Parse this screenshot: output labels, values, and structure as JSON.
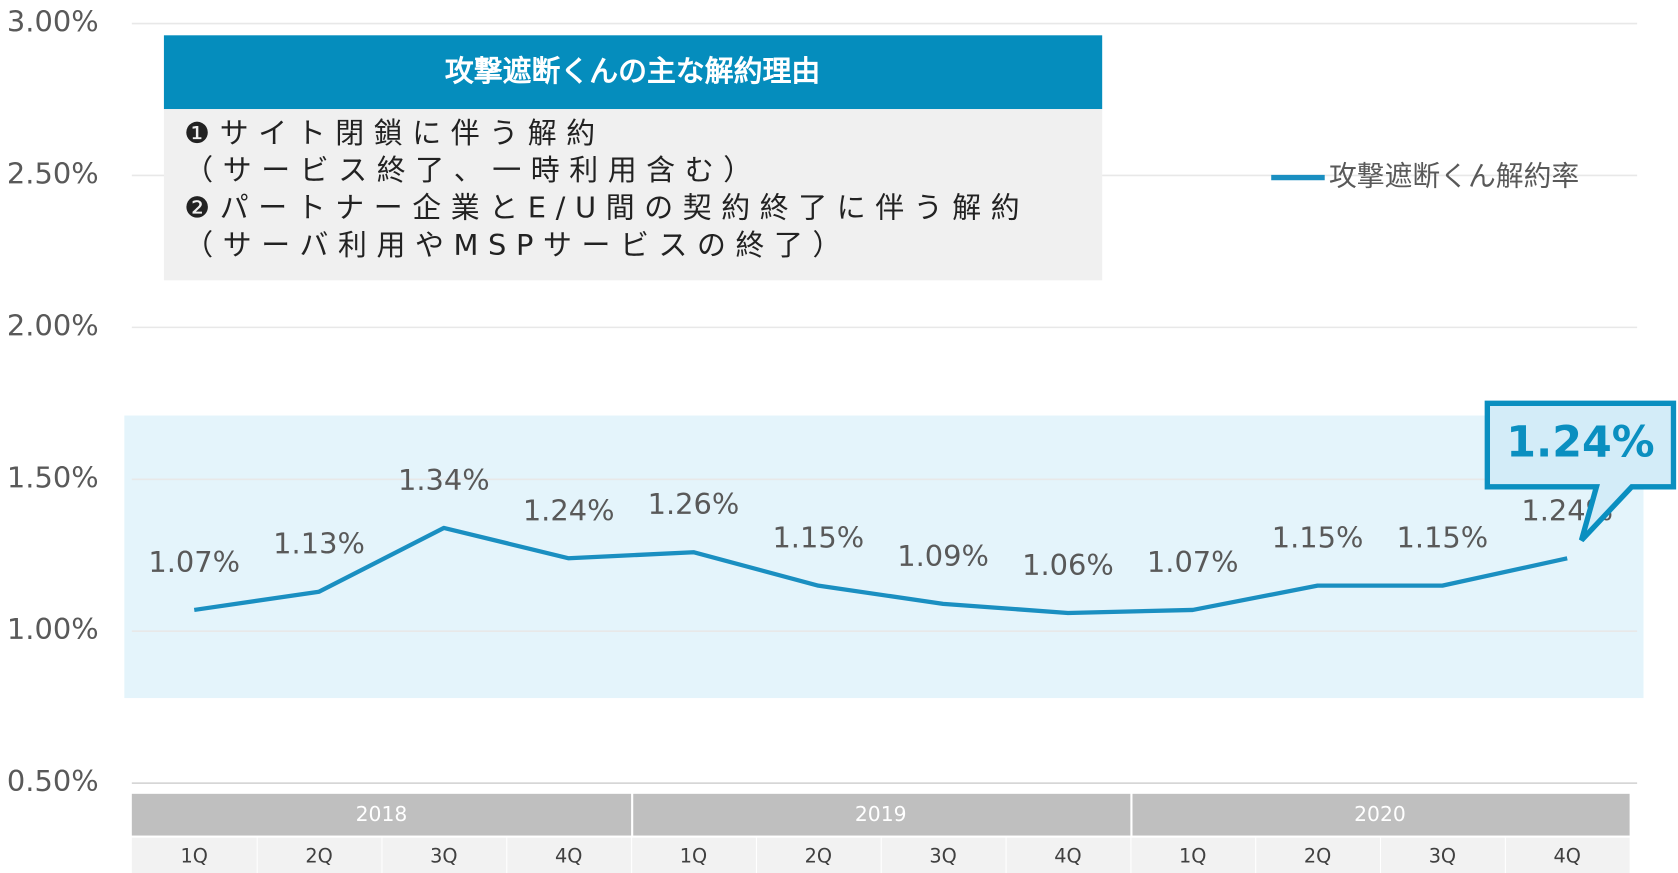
{
  "chart_data": {
    "type": "line",
    "categories": [
      "1Q",
      "2Q",
      "3Q",
      "4Q",
      "1Q",
      "2Q",
      "3Q",
      "4Q",
      "1Q",
      "2Q",
      "3Q",
      "4Q"
    ],
    "groups": [
      "2018",
      "2019",
      "2020"
    ],
    "series": [
      {
        "name": "攻撃遮断くん解約率",
        "color": "#1a8fc1",
        "values": [
          1.07,
          1.13,
          1.34,
          1.24,
          1.26,
          1.15,
          1.09,
          1.06,
          1.07,
          1.15,
          1.15,
          1.24
        ],
        "value_labels": [
          "1.07%",
          "1.13%",
          "1.34%",
          "1.24%",
          "1.26%",
          "1.15%",
          "1.09%",
          "1.06%",
          "1.07%",
          "1.15%",
          "1.15%",
          "1.24%"
        ]
      }
    ],
    "ylim": [
      0.5,
      3.0
    ],
    "yticks": [
      {
        "value": 0.5,
        "label": "0.50%"
      },
      {
        "value": 1.0,
        "label": "1.00%"
      },
      {
        "value": 1.5,
        "label": "1.50%"
      },
      {
        "value": 2.0,
        "label": "2.00%"
      },
      {
        "value": 2.5,
        "label": "2.50%"
      },
      {
        "value": 3.0,
        "label": "3.00%"
      }
    ],
    "grid": true,
    "legend": "right",
    "band": {
      "ylim": [
        0.78,
        1.71
      ],
      "color": "#e4f4fb"
    },
    "note": {
      "title": "攻撃遮断くんの主な解約理由",
      "lines": [
        "❶サイト閉鎖に伴う解約",
        "（サービス終了、一時利用含む）",
        "❷パートナー企業とE/U間の契約終了に伴う解約",
        "（サーバ利用やMSPサービスの終了）"
      ]
    },
    "callout": "1.24%"
  }
}
